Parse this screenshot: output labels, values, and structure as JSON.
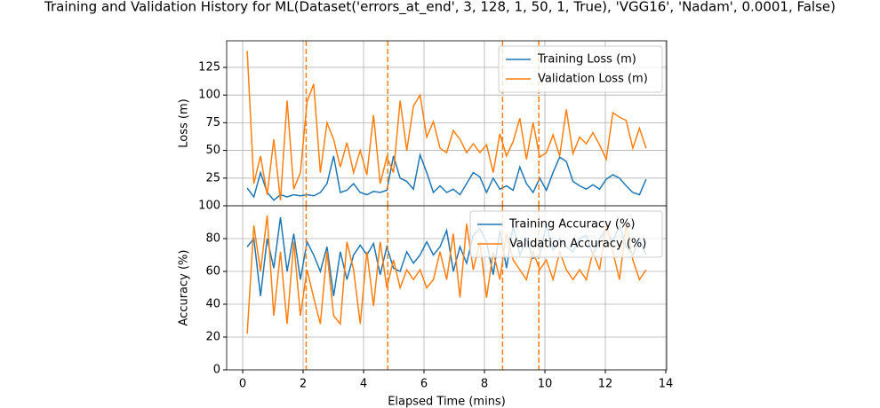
{
  "title": "Training and Validation History for ML(Dataset('errors_at_end', 3, 128, 1, 50, 1, True), 'VGG16', 'Nadam', 0.0001, False)",
  "chart_data": [
    {
      "type": "line",
      "ylabel": "Loss (m)",
      "x": [
        0.15,
        0.37,
        0.59,
        0.81,
        1.03,
        1.25,
        1.47,
        1.69,
        1.91,
        2.13,
        2.35,
        2.57,
        2.79,
        3.01,
        3.23,
        3.45,
        3.67,
        3.89,
        4.11,
        4.33,
        4.55,
        4.77,
        4.99,
        5.21,
        5.43,
        5.65,
        5.87,
        6.09,
        6.31,
        6.53,
        6.75,
        6.97,
        7.19,
        7.41,
        7.63,
        7.85,
        8.07,
        8.29,
        8.51,
        8.73,
        8.95,
        9.17,
        9.39,
        9.61,
        9.83,
        10.05,
        10.27,
        10.49,
        10.71,
        10.93,
        11.15,
        11.37,
        11.59,
        11.81,
        12.03,
        12.25,
        12.47,
        12.69,
        12.91,
        13.13,
        13.35
      ],
      "series": [
        {
          "name": "Training Loss (m)",
          "color": "#1f77b4",
          "values": [
            16,
            8,
            30,
            12,
            5,
            10,
            8,
            10,
            9,
            10,
            9,
            12,
            20,
            45,
            12,
            14,
            20,
            12,
            10,
            13,
            12,
            14,
            45,
            25,
            22,
            15,
            46,
            30,
            12,
            18,
            12,
            15,
            10,
            20,
            30,
            26,
            12,
            25,
            15,
            18,
            14,
            35,
            20,
            12,
            25,
            14,
            30,
            44,
            40,
            22,
            18,
            15,
            19,
            15,
            24,
            28,
            25,
            18,
            12,
            10,
            24
          ]
        },
        {
          "name": "Validation Loss (m)",
          "color": "#ff7f0e",
          "values": [
            140,
            20,
            45,
            10,
            60,
            5,
            95,
            15,
            30,
            94,
            110,
            30,
            75,
            60,
            35,
            57,
            30,
            50,
            28,
            82,
            20,
            44,
            30,
            95,
            50,
            90,
            100,
            62,
            76,
            52,
            48,
            68,
            60,
            48,
            56,
            48,
            55,
            30,
            65,
            45,
            58,
            79,
            42,
            75,
            44,
            48,
            64,
            45,
            87,
            47,
            62,
            56,
            66,
            55,
            42,
            84,
            80,
            77,
            52,
            70,
            52
          ]
        }
      ],
      "vlines": [
        2.1,
        4.8,
        8.6,
        9.8
      ],
      "vline_color": "#ff7f0e",
      "xlim": [
        -0.53,
        14.03
      ],
      "xticks": [
        0,
        2,
        4,
        6,
        8,
        10,
        12,
        14
      ],
      "ylim": [
        0,
        149
      ],
      "yticks": [
        25,
        50,
        75,
        100,
        125
      ],
      "grid": true,
      "legend": "upper-right"
    },
    {
      "type": "line",
      "ylabel": "Accuracy (%)",
      "xlabel": "Elapsed Time (mins)",
      "x": [
        0.15,
        0.37,
        0.59,
        0.81,
        1.03,
        1.25,
        1.47,
        1.69,
        1.91,
        2.13,
        2.35,
        2.57,
        2.79,
        3.01,
        3.23,
        3.45,
        3.67,
        3.89,
        4.11,
        4.33,
        4.55,
        4.77,
        4.99,
        5.21,
        5.43,
        5.65,
        5.87,
        6.09,
        6.31,
        6.53,
        6.75,
        6.97,
        7.19,
        7.41,
        7.63,
        7.85,
        8.07,
        8.29,
        8.51,
        8.73,
        8.95,
        9.17,
        9.39,
        9.61,
        9.83,
        10.05,
        10.27,
        10.49,
        10.71,
        10.93,
        11.15,
        11.37,
        11.59,
        11.81,
        12.03,
        12.25,
        12.47,
        12.69,
        12.91,
        13.13,
        13.35
      ],
      "series": [
        {
          "name": "Training Accuracy (%)",
          "color": "#1f77b4",
          "values": [
            75,
            80,
            45,
            80,
            62,
            93,
            60,
            83,
            55,
            78,
            70,
            60,
            75,
            45,
            72,
            55,
            70,
            76,
            70,
            77,
            58,
            75,
            62,
            60,
            72,
            65,
            70,
            78,
            70,
            75,
            85,
            60,
            75,
            65,
            82,
            86,
            78,
            58,
            85,
            62,
            88,
            70,
            80,
            68,
            70,
            88,
            73,
            80,
            75,
            72,
            80,
            82,
            70,
            80,
            86,
            78,
            88,
            75,
            70,
            80,
            70
          ]
        },
        {
          "name": "Validation Accuracy (%)",
          "color": "#ff7f0e",
          "values": [
            22,
            88,
            60,
            94,
            33,
            72,
            28,
            78,
            33,
            61,
            44,
            28,
            72,
            33,
            28,
            78,
            61,
            28,
            72,
            39,
            78,
            50,
            67,
            50,
            61,
            55,
            61,
            50,
            55,
            72,
            55,
            83,
            44,
            89,
            61,
            78,
            44,
            72,
            55,
            83,
            67,
            61,
            55,
            72,
            61,
            67,
            55,
            72,
            61,
            55,
            61,
            55,
            72,
            61,
            89,
            72,
            55,
            89,
            67,
            55,
            61
          ]
        }
      ],
      "vlines": [
        2.1,
        4.8,
        8.6,
        9.8
      ],
      "vline_color": "#ff7f0e",
      "xlim": [
        -0.53,
        14.03
      ],
      "xticks": [
        0,
        2,
        4,
        6,
        8,
        10,
        12,
        14
      ],
      "ylim": [
        0,
        100
      ],
      "yticks": [
        0,
        20,
        40,
        60,
        80,
        100
      ],
      "grid": true,
      "legend": "upper-right"
    }
  ]
}
